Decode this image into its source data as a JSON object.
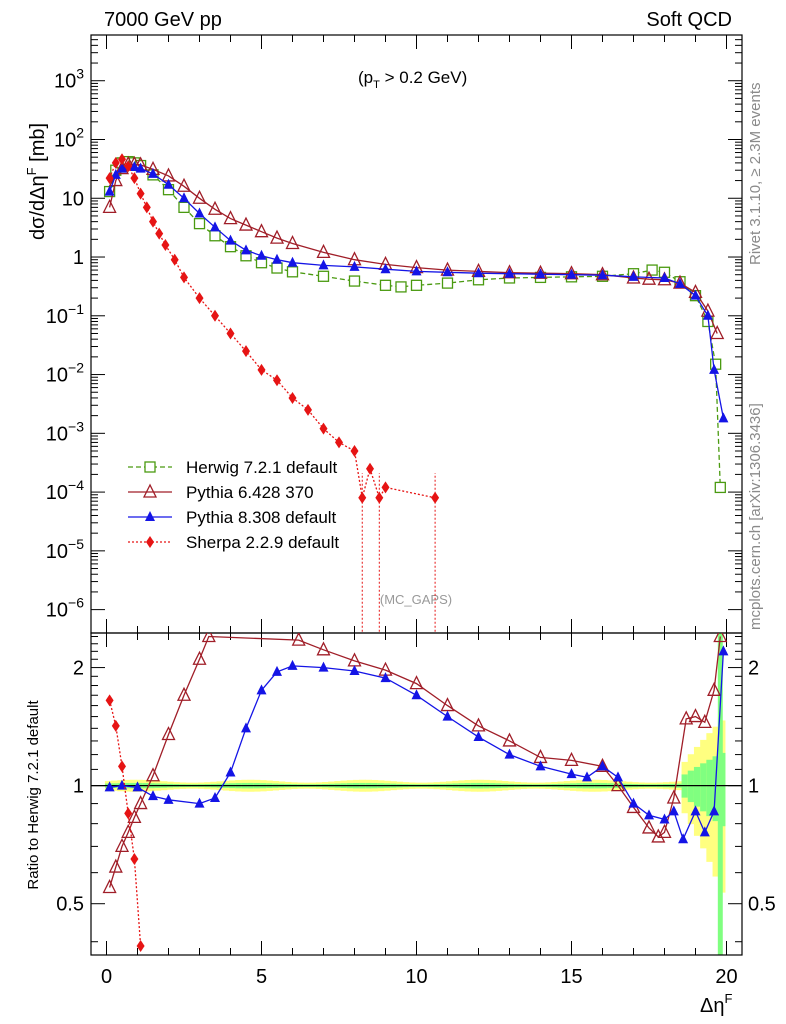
{
  "header": {
    "left": "7000 GeV pp",
    "right": "Soft QCD"
  },
  "side_text": {
    "rivet": "Rivet 3.1.10, ≥ 2.3M events",
    "mcplots": "mcplots.cern.ch [arXiv:1306.3436]"
  },
  "annotation": {
    "cut_pre": "(p",
    "cut_sub": "T",
    "cut_post": " > 0.2 GeV)",
    "analysis": "(MC_GAPS)"
  },
  "colors": {
    "herwig": "#4a9a10",
    "pythia6": "#a01e28",
    "pythia8": "#1414e6",
    "sherpa": "#e61414",
    "band_yellow": "#ffff80",
    "band_green": "#80ff80"
  },
  "chart_data": [
    {
      "type": "scatter",
      "panel": "main",
      "ylabel_pre": "dσ/dΔη",
      "ylabel_sup": "F",
      "ylabel_post": " [mb]",
      "yscale": "log",
      "ylim": [
        4e-07,
        6000
      ],
      "xlim": [
        -0.5,
        20.5
      ],
      "yticks": [
        {
          "v": 1e-06,
          "b": "10",
          "e": "−6"
        },
        {
          "v": 1e-05,
          "b": "10",
          "e": "−5"
        },
        {
          "v": 0.0001,
          "b": "10",
          "e": "−4"
        },
        {
          "v": 0.001,
          "b": "10",
          "e": "−3"
        },
        {
          "v": 0.01,
          "b": "10",
          "e": "−2"
        },
        {
          "v": 0.1,
          "b": "10",
          "e": "−1"
        },
        {
          "v": 1,
          "b": "1",
          "e": ""
        },
        {
          "v": 10,
          "b": "10",
          "e": ""
        },
        {
          "v": 100,
          "b": "10",
          "e": "2"
        },
        {
          "v": 1000,
          "b": "10",
          "e": "3"
        }
      ],
      "legend_position": "lower-left",
      "series": [
        {
          "name": "Herwig 7.2.1 default",
          "key": "herwig",
          "marker": "square-open",
          "line": "dashed",
          "points": [
            [
              0.1,
              13
            ],
            [
              0.3,
              30
            ],
            [
              0.5,
              40
            ],
            [
              0.7,
              42
            ],
            [
              0.9,
              40
            ],
            [
              1.1,
              36
            ],
            [
              1.5,
              25
            ],
            [
              2,
              14
            ],
            [
              2.5,
              7
            ],
            [
              3,
              3.7
            ],
            [
              3.5,
              2.3
            ],
            [
              4,
              1.5
            ],
            [
              4.5,
              1.05
            ],
            [
              5,
              0.8
            ],
            [
              5.5,
              0.65
            ],
            [
              6,
              0.56
            ],
            [
              7,
              0.47
            ],
            [
              8,
              0.39
            ],
            [
              9,
              0.33
            ],
            [
              9.5,
              0.31
            ],
            [
              10,
              0.33
            ],
            [
              11,
              0.36
            ],
            [
              12,
              0.41
            ],
            [
              13,
              0.44
            ],
            [
              14,
              0.45
            ],
            [
              15,
              0.46
            ],
            [
              16,
              0.47
            ],
            [
              17,
              0.52
            ],
            [
              17.6,
              0.6
            ],
            [
              18,
              0.55
            ],
            [
              18.5,
              0.38
            ],
            [
              19,
              0.22
            ],
            [
              19.4,
              0.08
            ],
            [
              19.65,
              0.015
            ],
            [
              19.8,
              0.00012
            ]
          ]
        },
        {
          "name": "Pythia 6.428 370",
          "key": "pythia6",
          "marker": "triangle-open",
          "line": "solid",
          "points": [
            [
              0.1,
              7
            ],
            [
              0.3,
              20
            ],
            [
              0.5,
              32
            ],
            [
              0.7,
              38
            ],
            [
              0.9,
              38
            ],
            [
              1.1,
              37
            ],
            [
              1.5,
              31
            ],
            [
              2,
              24
            ],
            [
              2.5,
              16
            ],
            [
              3,
              10
            ],
            [
              3.5,
              6.5
            ],
            [
              4,
              4.5
            ],
            [
              4.5,
              3.5
            ],
            [
              5,
              2.7
            ],
            [
              5.5,
              2.1
            ],
            [
              6,
              1.7
            ],
            [
              7,
              1.2
            ],
            [
              8,
              0.9
            ],
            [
              9,
              0.75
            ],
            [
              10,
              0.66
            ],
            [
              11,
              0.6
            ],
            [
              12,
              0.57
            ],
            [
              13,
              0.54
            ],
            [
              14,
              0.53
            ],
            [
              15,
              0.52
            ],
            [
              16,
              0.5
            ],
            [
              17,
              0.44
            ],
            [
              17.5,
              0.42
            ],
            [
              18,
              0.41
            ],
            [
              18.5,
              0.36
            ],
            [
              19,
              0.25
            ],
            [
              19.4,
              0.12
            ],
            [
              19.7,
              0.05
            ]
          ]
        },
        {
          "name": "Pythia 8.308 default",
          "key": "pythia8",
          "marker": "triangle-filled",
          "line": "solid",
          "points": [
            [
              0.1,
              13
            ],
            [
              0.3,
              25
            ],
            [
              0.5,
              32
            ],
            [
              0.7,
              35
            ],
            [
              0.9,
              34
            ],
            [
              1.1,
              32
            ],
            [
              1.5,
              26
            ],
            [
              2,
              17
            ],
            [
              2.5,
              10
            ],
            [
              3,
              5.5
            ],
            [
              3.5,
              3.2
            ],
            [
              4,
              1.9
            ],
            [
              4.5,
              1.3
            ],
            [
              5,
              1.05
            ],
            [
              5.5,
              0.9
            ],
            [
              6,
              0.8
            ],
            [
              7,
              0.72
            ],
            [
              8,
              0.68
            ],
            [
              9,
              0.62
            ],
            [
              10,
              0.57
            ],
            [
              11,
              0.55
            ],
            [
              12,
              0.53
            ],
            [
              13,
              0.52
            ],
            [
              14,
              0.51
            ],
            [
              15,
              0.5
            ],
            [
              16,
              0.49
            ],
            [
              17,
              0.46
            ],
            [
              18,
              0.44
            ],
            [
              18.5,
              0.35
            ],
            [
              19,
              0.22
            ],
            [
              19.4,
              0.1
            ],
            [
              19.6,
              0.012
            ],
            [
              19.9,
              0.0018
            ]
          ]
        },
        {
          "name": "Sherpa 2.2.9 default",
          "key": "sherpa",
          "marker": "diamond-filled",
          "line": "dotted",
          "points": [
            [
              0.1,
              22
            ],
            [
              0.3,
              40
            ],
            [
              0.5,
              46
            ],
            [
              0.7,
              35
            ],
            [
              0.9,
              22
            ],
            [
              1.1,
              12
            ],
            [
              1.3,
              7
            ],
            [
              1.5,
              4
            ],
            [
              1.7,
              2.5
            ],
            [
              1.9,
              1.6
            ],
            [
              2.2,
              0.9
            ],
            [
              2.5,
              0.45
            ],
            [
              3,
              0.2
            ],
            [
              3.5,
              0.1
            ],
            [
              4,
              0.05
            ],
            [
              4.5,
              0.025
            ],
            [
              5,
              0.012
            ],
            [
              5.5,
              0.008
            ],
            [
              6,
              0.004
            ],
            [
              6.5,
              0.0025
            ],
            [
              7,
              0.0012
            ],
            [
              7.5,
              0.0007
            ],
            [
              8,
              0.0005
            ],
            [
              8.5,
              0.00025
            ],
            [
              9,
              0.00012
            ],
            [
              8.25,
              8e-05
            ],
            [
              8.8,
              8e-05
            ],
            [
              10.6,
              8e-05
            ]
          ]
        }
      ]
    },
    {
      "type": "scatter",
      "panel": "ratio",
      "xlabel_pre": "Δη",
      "xlabel_sup": "F",
      "ylabel": "Ratio to Herwig 7.2.1 default",
      "yscale": "log",
      "ylim": [
        0.37,
        2.45
      ],
      "xlim": [
        -0.5,
        20.5
      ],
      "yticks": [
        0.5,
        1,
        2
      ],
      "xticks": [
        0,
        5,
        10,
        15,
        20
      ],
      "series": [
        {
          "key": "pythia6",
          "marker": "triangle-open",
          "line": "solid",
          "points": [
            [
              0.1,
              0.55
            ],
            [
              0.3,
              0.62
            ],
            [
              0.5,
              0.7
            ],
            [
              0.7,
              0.76
            ],
            [
              0.9,
              0.83
            ],
            [
              1.1,
              0.9
            ],
            [
              1.5,
              1.06
            ],
            [
              2,
              1.35
            ],
            [
              2.5,
              1.7
            ],
            [
              3,
              2.1
            ],
            [
              3.3,
              2.4
            ],
            [
              6.2,
              2.35
            ],
            [
              7,
              2.22
            ],
            [
              8,
              2.08
            ],
            [
              9,
              1.97
            ],
            [
              10,
              1.82
            ],
            [
              11,
              1.6
            ],
            [
              12,
              1.42
            ],
            [
              13,
              1.3
            ],
            [
              14,
              1.18
            ],
            [
              15,
              1.16
            ],
            [
              16,
              1.12
            ],
            [
              16.5,
              1.0
            ],
            [
              17,
              0.88
            ],
            [
              17.5,
              0.78
            ],
            [
              17.8,
              0.74
            ],
            [
              18,
              0.76
            ],
            [
              18.3,
              0.93
            ],
            [
              18.7,
              1.48
            ],
            [
              19,
              1.5
            ],
            [
              19.3,
              1.45
            ],
            [
              19.6,
              1.75
            ],
            [
              19.8,
              2.4
            ]
          ]
        },
        {
          "key": "pythia8",
          "marker": "triangle-filled",
          "line": "solid",
          "points": [
            [
              0.1,
              0.99
            ],
            [
              0.5,
              1.0
            ],
            [
              1.0,
              0.99
            ],
            [
              1.5,
              0.94
            ],
            [
              2,
              0.92
            ],
            [
              3,
              0.9
            ],
            [
              3.5,
              0.93
            ],
            [
              4,
              1.08
            ],
            [
              4.5,
              1.4
            ],
            [
              5,
              1.75
            ],
            [
              5.5,
              1.95
            ],
            [
              6,
              2.02
            ],
            [
              7,
              2.0
            ],
            [
              8,
              1.96
            ],
            [
              9,
              1.88
            ],
            [
              10,
              1.7
            ],
            [
              11,
              1.5
            ],
            [
              12,
              1.33
            ],
            [
              13,
              1.2
            ],
            [
              14,
              1.12
            ],
            [
              15,
              1.07
            ],
            [
              15.5,
              1.05
            ],
            [
              16,
              1.12
            ],
            [
              16.5,
              1.05
            ],
            [
              17,
              0.9
            ],
            [
              17.5,
              0.84
            ],
            [
              18,
              0.82
            ],
            [
              18.3,
              0.86
            ],
            [
              18.6,
              0.73
            ],
            [
              19,
              0.86
            ],
            [
              19.3,
              0.76
            ],
            [
              19.6,
              0.86
            ],
            [
              19.9,
              2.2
            ]
          ]
        },
        {
          "key": "sherpa",
          "marker": "diamond-filled",
          "line": "dotted",
          "points": [
            [
              0.1,
              1.65
            ],
            [
              0.3,
              1.42
            ],
            [
              0.5,
              1.12
            ],
            [
              0.7,
              0.85
            ],
            [
              0.9,
              0.65
            ],
            [
              1.1,
              0.39
            ]
          ]
        }
      ]
    }
  ]
}
